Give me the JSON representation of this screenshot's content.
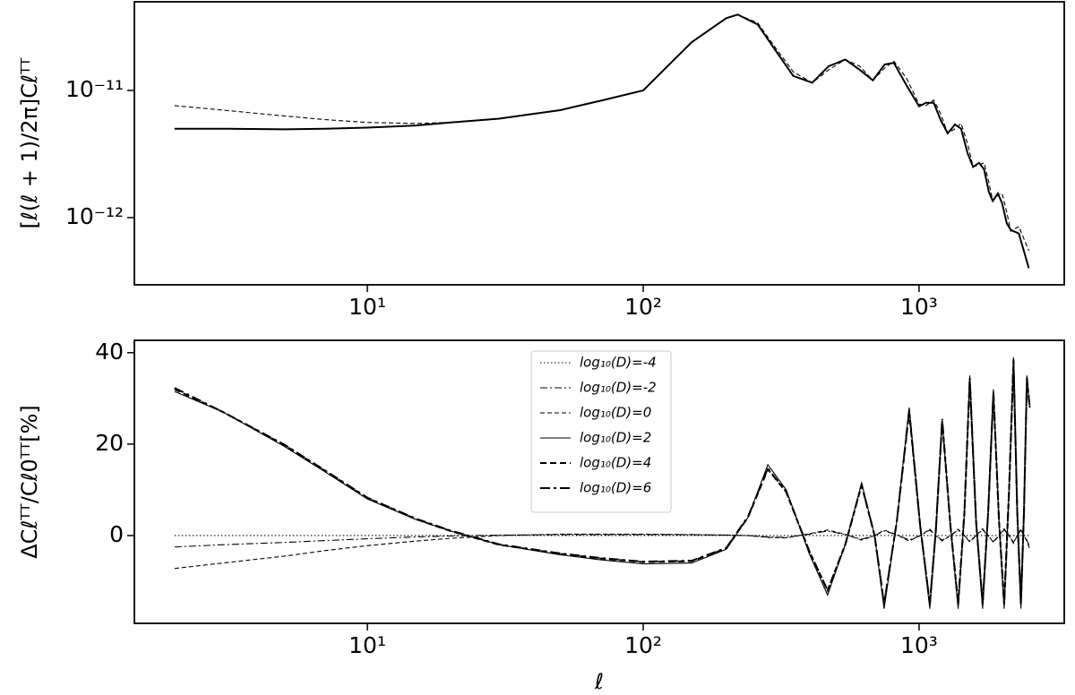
{
  "chart_data": [
    {
      "type": "line",
      "ylabel": "[ℓ(ℓ + 1)/2π]Cℓᵀᵀ",
      "xscale": "log",
      "yscale": "log",
      "xlim": [
        1.43,
        3360
      ],
      "ylim": [
        2.96e-13,
        4.98e-11
      ],
      "xticks": [
        {
          "value": 10,
          "label": "10¹"
        },
        {
          "value": 100,
          "label": "10²"
        },
        {
          "value": 1000,
          "label": "10³"
        }
      ],
      "yticks": [
        {
          "value": 1e-12,
          "label": "10⁻¹²"
        },
        {
          "value": 1e-11,
          "label": "10⁻¹¹"
        }
      ],
      "x": [
        2,
        3,
        5,
        7,
        10,
        15,
        20,
        30,
        50,
        70,
        100,
        150,
        200,
        220,
        260,
        300,
        350,
        410,
        470,
        540,
        610,
        680,
        750,
        810,
        900,
        1000,
        1060,
        1130,
        1200,
        1270,
        1350,
        1420,
        1500,
        1570,
        1650,
        1720,
        1790,
        1850,
        1930,
        2000,
        2080,
        2150,
        2300,
        2500
      ],
      "series": [
        {
          "color": "#000000",
          "dash": "dashed",
          "weight": "thin",
          "values": [
            7.6e-12,
            7e-12,
            6.3e-12,
            5.9e-12,
            5.6e-12,
            5.5e-12,
            5.6e-12,
            6e-12,
            7e-12,
            8.3e-12,
            1e-11,
            2.4e-11,
            3.7e-11,
            3.95e-11,
            3.4e-11,
            2.2e-11,
            1.4e-11,
            1.15e-11,
            1.45e-11,
            1.75e-11,
            1.55e-11,
            1.2e-11,
            1.5e-11,
            1.7e-11,
            1.25e-11,
            7.8e-12,
            7.6e-12,
            8.4e-12,
            6.5e-12,
            4.6e-12,
            5e-12,
            5.5e-12,
            3.8e-12,
            2.5e-12,
            2.6e-12,
            2.7e-12,
            1.9e-12,
            1.35e-12,
            1.5e-12,
            1.55e-12,
            1.1e-12,
            7.8e-13,
            8.5e-13,
            5.5e-13
          ]
        },
        {
          "color": "#000000",
          "dash": "solid",
          "weight": "bold",
          "values": [
            5e-12,
            5e-12,
            4.95e-12,
            5e-12,
            5.1e-12,
            5.3e-12,
            5.6e-12,
            6e-12,
            7e-12,
            8.3e-12,
            1e-11,
            2.4e-11,
            3.7e-11,
            3.95e-11,
            3.3e-11,
            2.1e-11,
            1.3e-11,
            1.15e-11,
            1.55e-11,
            1.75e-11,
            1.45e-11,
            1.2e-11,
            1.6e-11,
            1.65e-11,
            1.1e-11,
            7.5e-12,
            8e-12,
            8e-12,
            5.8e-12,
            4.6e-12,
            5.4e-12,
            5e-12,
            3.2e-12,
            2.5e-12,
            2.7e-12,
            2.4e-12,
            1.6e-12,
            1.35e-12,
            1.55e-12,
            1.3e-12,
            9e-13,
            8e-13,
            7.5e-13,
            4e-13
          ]
        }
      ]
    },
    {
      "type": "line",
      "xlabel": "ℓ",
      "ylabel": "ΔCℓᵀᵀ/Cℓ0ᵀᵀ[%]",
      "xscale": "log",
      "yscale": "linear",
      "xlim": [
        1.43,
        3360
      ],
      "ylim": [
        -19.2,
        42.7
      ],
      "xticks": [
        {
          "value": 10,
          "label": "10¹"
        },
        {
          "value": 100,
          "label": "10²"
        },
        {
          "value": 1000,
          "label": "10³"
        }
      ],
      "yticks": [
        0,
        20,
        40
      ],
      "legend": "upper center",
      "x": [
        2,
        3,
        5,
        7,
        10,
        15,
        20,
        30,
        50,
        70,
        100,
        150,
        200,
        240,
        283,
        330,
        400,
        466,
        540,
        619,
        690,
        747,
        830,
        921,
        1010,
        1094,
        1150,
        1213,
        1300,
        1386,
        1460,
        1527,
        1610,
        1700,
        1780,
        1860,
        1950,
        2035,
        2120,
        2200,
        2270,
        2340,
        2400,
        2460,
        2520
      ],
      "series": [
        {
          "name": "log₁₀(D)=-4",
          "color": "#000000",
          "dash": "dotted",
          "weight": "thin",
          "values": [
            0,
            0,
            0,
            0,
            0,
            0,
            0,
            0,
            0,
            0,
            0,
            0,
            0,
            0,
            0,
            0,
            0,
            0,
            0,
            0,
            0,
            0,
            0,
            0,
            0,
            0,
            0,
            0,
            0,
            0,
            0,
            0,
            0,
            0,
            0,
            0,
            0,
            0,
            0,
            0,
            0,
            0,
            0,
            0,
            0
          ]
        },
        {
          "name": "log₁₀(D)=-2",
          "color": "#000000",
          "dash": "dashdot",
          "weight": "thin",
          "values": [
            -2.5,
            -2,
            -1.5,
            -1.1,
            -0.7,
            -0.3,
            -0.1,
            0.1,
            0.2,
            0.2,
            0.2,
            0.2,
            0.1,
            0,
            -0.3,
            -0.4,
            0.3,
            1,
            0.2,
            -0.8,
            0,
            1,
            0.2,
            -1,
            0,
            1.2,
            0,
            -1,
            0,
            1.2,
            0,
            -1.2,
            0,
            1.3,
            0,
            -1.3,
            0,
            1.3,
            0,
            -1.5,
            0,
            1.2,
            0,
            -1,
            -2.5
          ]
        },
        {
          "name": "log₁₀(D)=0",
          "color": "#000000",
          "dash": "dashed",
          "weight": "thin",
          "values": [
            -7.2,
            -6,
            -4.5,
            -3.3,
            -2.2,
            -1.2,
            -0.6,
            0,
            0.3,
            0.3,
            0.3,
            0.2,
            0.1,
            0,
            -0.4,
            -0.5,
            0.4,
            1.2,
            0.3,
            -1,
            0,
            1.2,
            0.2,
            -1.2,
            0,
            1.4,
            0,
            -1.2,
            0,
            1.4,
            0,
            -1.4,
            0,
            1.5,
            0,
            -1.5,
            0,
            1.5,
            0,
            -1.7,
            0,
            1.4,
            0,
            -1.2,
            -3
          ]
        },
        {
          "name": "log₁₀(D)=2",
          "color": "#000000",
          "dash": "solid",
          "weight": "thin",
          "values": [
            31.5,
            27,
            19.5,
            14,
            8,
            3.5,
            1,
            -2,
            -4.2,
            -5.3,
            -6.2,
            -6,
            -3,
            4,
            15.5,
            10,
            -4,
            -13,
            -2,
            11.5,
            0,
            -16,
            3,
            28,
            2,
            -16,
            1,
            25,
            2,
            -16,
            5,
            35,
            3,
            -16,
            5,
            32,
            3,
            -16,
            10,
            39,
            5,
            -16,
            5,
            35,
            28
          ]
        },
        {
          "name": "log₁₀(D)=4",
          "color": "#000000",
          "dash": "dashed",
          "weight": "bold",
          "values": [
            32,
            27,
            19.8,
            14.2,
            8.2,
            3.6,
            1,
            -2,
            -4,
            -5,
            -5.8,
            -5.6,
            -2.8,
            4,
            14.5,
            9.5,
            -3.5,
            -12,
            -2,
            11,
            0,
            -15,
            3,
            27,
            2,
            -15,
            1,
            25,
            2,
            -15,
            5,
            34,
            3,
            -15,
            5,
            31,
            3,
            -15,
            10,
            38,
            5,
            -15,
            5,
            34,
            28
          ]
        },
        {
          "name": "log₁₀(D)=6",
          "color": "#000000",
          "dash": "dashdot",
          "weight": "bold",
          "values": [
            32.3,
            27,
            19.9,
            14.3,
            8.3,
            3.7,
            1.1,
            -1.9,
            -3.9,
            -4.9,
            -5.7,
            -5.5,
            -2.7,
            4.2,
            14.7,
            9.6,
            -3.4,
            -12,
            -2,
            11.2,
            0,
            -15,
            3,
            27.5,
            2,
            -15,
            1,
            25.5,
            2,
            -15,
            5,
            34.5,
            3,
            -15,
            5,
            31.5,
            3,
            -15,
            10,
            38.5,
            5,
            -15,
            5,
            34.5,
            28
          ]
        }
      ]
    }
  ]
}
